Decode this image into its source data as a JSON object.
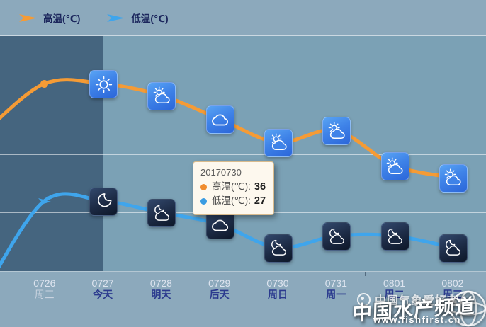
{
  "legend": {
    "items": [
      {
        "label": "高温(℃)",
        "color": "#F59B35"
      },
      {
        "label": "低温(℃)",
        "color": "#3FA5EC"
      }
    ]
  },
  "chart_data": {
    "type": "line",
    "x_dates": [
      "0726",
      "0727",
      "0728",
      "0729",
      "0730",
      "0731",
      "0801",
      "0802"
    ],
    "x_days": [
      "周三",
      "今天",
      "明天",
      "后天",
      "周日",
      "周一",
      "周二",
      "周三"
    ],
    "today_index": 1,
    "hover_index": 4,
    "ylim": [
      25,
      45
    ],
    "grid_step": 5,
    "legend_position": "top-left",
    "series": [
      {
        "name": "高温(℃)",
        "color": "#F59B35",
        "values": [
          41,
          41,
          40,
          38,
          36,
          37,
          34,
          33
        ],
        "lead_in_value": 37,
        "icons": [
          "dot-marker",
          "sun",
          "sun-cloud",
          "cloud",
          "sun-cloud",
          "sun-cloud",
          "sun-cloud",
          "sun-cloud"
        ],
        "icon_theme": "day"
      },
      {
        "name": "低温(℃)",
        "color": "#3FA5EC",
        "values": [
          31,
          31,
          30,
          29,
          27,
          28,
          28,
          27
        ],
        "lead_in_value": 23.5,
        "icons": [
          "arrow-marker",
          "moon",
          "moon-cloud",
          "cloud",
          "moon-cloud",
          "moon-cloud",
          "moon-cloud",
          "moon-cloud"
        ],
        "icon_theme": "night"
      }
    ]
  },
  "tooltip": {
    "date": "20170730",
    "rows": [
      {
        "label": "高温(℃):",
        "value": "36",
        "color": "#F08C2E"
      },
      {
        "label": "低温(℃):",
        "value": "27",
        "color": "#3B9CE2"
      }
    ]
  },
  "watermarks": {
    "weather_community": "中国气象爱好者",
    "brand": "中国水产频道",
    "brand_url": "www.fishfirst.cn"
  },
  "colors": {
    "band": "#8CA9BC",
    "plot": "#7BA1B5",
    "past_region": "#45657F",
    "gridline": "rgba(255,255,255,0.55)",
    "axis_date_text": "#DDE4EF",
    "axis_day_text": "#2B3A8E",
    "axis_day_past_text": "#C9D3DF",
    "tooltip_bg": "#FDF8EE",
    "tooltip_border": "#D9BB8D",
    "day_icon_bg": "#3F83E8",
    "night_icon_bg": "#18263F"
  }
}
